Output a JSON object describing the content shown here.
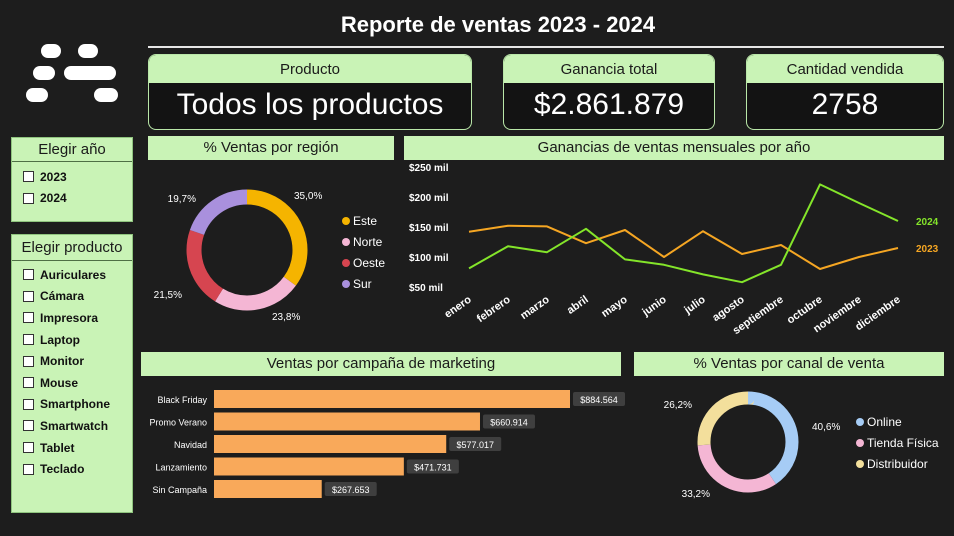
{
  "header": {
    "title": "Reporte de ventas 2023 - 2024"
  },
  "kpis": {
    "producto": {
      "label": "Producto",
      "value": "Todos los productos"
    },
    "ganancia": {
      "label": "Ganancia total",
      "value": "$2.861.879"
    },
    "cantidad": {
      "label": "Cantidad vendida",
      "value": "2758"
    }
  },
  "slicers": {
    "year": {
      "title": "Elegir año",
      "items": [
        "2023",
        "2024"
      ]
    },
    "product": {
      "title": "Elegir producto",
      "items": [
        "Auriculares",
        "Cámara",
        "Impresora",
        "Laptop",
        "Monitor",
        "Mouse",
        "Smartphone",
        "Smartwatch",
        "Tablet",
        "Teclado"
      ]
    }
  },
  "panels": {
    "region": "% Ventas por región",
    "monthly": "Ganancias de ventas mensuales por año",
    "campaign": "Ventas por campaña de marketing",
    "channel": "% Ventas por canal de venta"
  },
  "chart_data": [
    {
      "id": "region",
      "type": "pie",
      "labels": [
        "Este",
        "Norte",
        "Oeste",
        "Sur"
      ],
      "values": [
        35.0,
        23.8,
        21.5,
        19.7
      ],
      "value_labels": [
        "35,0%",
        "23,8%",
        "21,5%",
        "19,7%"
      ],
      "colors": [
        "#f5b400",
        "#f4b6d4",
        "#d64550",
        "#a990dd"
      ],
      "legend": "right"
    },
    {
      "id": "monthly",
      "type": "line",
      "x": [
        "enero",
        "febrero",
        "marzo",
        "abril",
        "mayo",
        "junio",
        "julio",
        "agosto",
        "septiembre",
        "octubre",
        "noviembre",
        "diciembre"
      ],
      "y_ticks": [
        50,
        100,
        150,
        200,
        250
      ],
      "y_tick_labels": [
        "$50 mil",
        "$100 mil",
        "$150 mil",
        "$200 mil",
        "$250 mil"
      ],
      "ylim": [
        50,
        250
      ],
      "grid": false,
      "series": [
        {
          "name": "2023",
          "color": "#f5a623",
          "values": [
            142,
            152,
            151,
            123,
            145,
            100,
            143,
            105,
            120,
            80,
            100,
            115
          ]
        },
        {
          "name": "2024",
          "color": "#84e52a",
          "values": [
            81,
            118,
            108,
            147,
            96,
            87,
            71,
            58,
            87,
            221,
            190,
            160
          ]
        }
      ]
    },
    {
      "id": "campaign",
      "type": "bar",
      "orientation": "horizontal",
      "categories": [
        "Black Friday",
        "Promo Verano",
        "Navidad",
        "Lanzamiento",
        "Sin Campaña"
      ],
      "values": [
        884564,
        660914,
        577017,
        471731,
        267653
      ],
      "value_labels": [
        "$884.564",
        "$660.914",
        "$577.017",
        "$471.731",
        "$267.653"
      ],
      "xlim": [
        0,
        884564
      ],
      "color": "#f9a95a"
    },
    {
      "id": "channel",
      "type": "pie",
      "labels": [
        "Online",
        "Tienda Física",
        "Distribuidor"
      ],
      "values": [
        40.6,
        33.2,
        26.2
      ],
      "value_labels": [
        "40,6%",
        "33,2%",
        "26,2%"
      ],
      "colors": [
        "#a6ccf5",
        "#f4b6d4",
        "#f3df9c"
      ],
      "legend": "right"
    }
  ]
}
